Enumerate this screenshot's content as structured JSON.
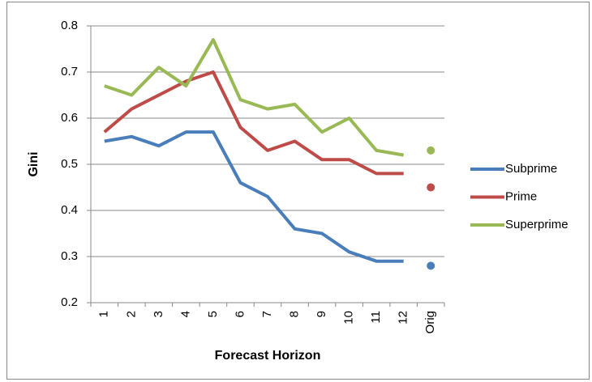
{
  "chart_data": {
    "type": "line",
    "x_label": "Forecast Horizon",
    "y_label": "Gini",
    "categories": [
      "1",
      "2",
      "3",
      "4",
      "5",
      "6",
      "7",
      "8",
      "9",
      "10",
      "11",
      "12",
      "Orig"
    ],
    "series": [
      {
        "name": "Subprime",
        "color": "#4a7ebb",
        "values": [
          0.55,
          0.56,
          0.54,
          0.57,
          0.57,
          0.46,
          0.43,
          0.36,
          0.35,
          0.31,
          0.29,
          0.29,
          0.28
        ]
      },
      {
        "name": "Prime",
        "color": "#be4b48",
        "values": [
          0.57,
          0.62,
          0.65,
          0.68,
          0.7,
          0.58,
          0.53,
          0.55,
          0.51,
          0.51,
          0.48,
          0.48,
          0.45
        ]
      },
      {
        "name": "Superprime",
        "color": "#98b954",
        "values": [
          0.67,
          0.65,
          0.71,
          0.67,
          0.77,
          0.64,
          0.62,
          0.63,
          0.57,
          0.6,
          0.53,
          0.52,
          0.53
        ]
      }
    ],
    "last_point_separate": true,
    "ylim": [
      0.2,
      0.8
    ],
    "yticks": [
      0.2,
      0.3,
      0.4,
      0.5,
      0.6,
      0.7,
      0.8
    ],
    "grid": true,
    "legend": "right"
  }
}
